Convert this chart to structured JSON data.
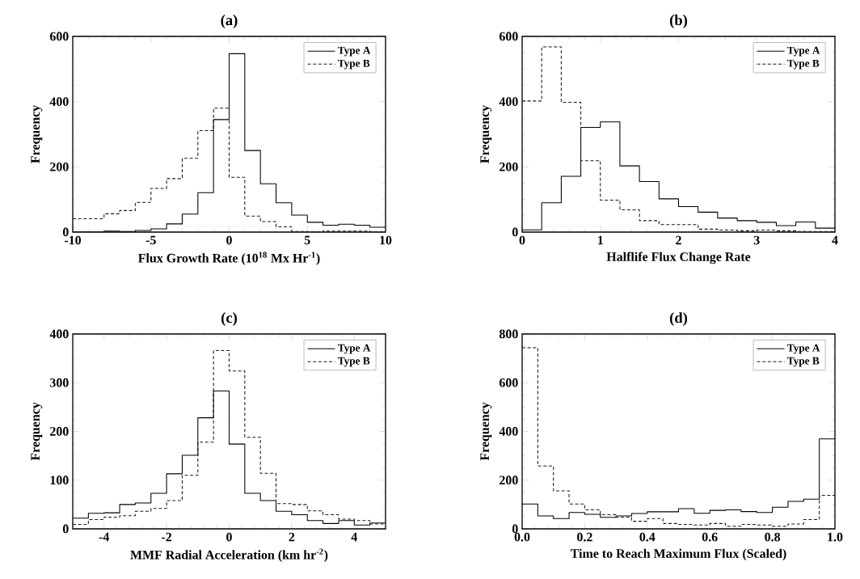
{
  "chart_data": [
    {
      "type": "histogram",
      "title": "(a)",
      "xlabel": "Flux Growth Rate (10$^{18}$ Mx Hr$^{-1}$)",
      "ylabel": "Frequency",
      "bins": [
        -10,
        -9,
        -8,
        -7,
        -6,
        -5,
        -4,
        -3,
        -2,
        -1,
        0,
        1,
        2,
        3,
        4,
        5,
        6,
        7,
        8,
        9,
        10
      ],
      "series": [
        {
          "name": "Type A",
          "color": "#000000",
          "line_style": "solid",
          "values": [
            0,
            0,
            3,
            2,
            5,
            10,
            25,
            55,
            121,
            345,
            547,
            250,
            148,
            90,
            52,
            30,
            21,
            24,
            21,
            15
          ]
        },
        {
          "name": "Type B",
          "color": "#1a1a1a",
          "line_style": "dashed",
          "values": [
            41,
            41,
            56,
            66,
            91,
            134,
            164,
            226,
            311,
            380,
            168,
            49,
            32,
            16,
            2,
            1,
            3,
            3,
            3,
            1
          ]
        }
      ],
      "xlim": [
        -10,
        10
      ],
      "ylim": [
        0,
        600
      ],
      "xticks": [
        -10,
        -5,
        0,
        5,
        10
      ],
      "yticks": [
        0,
        200,
        400,
        600
      ],
      "legend": "top right"
    },
    {
      "type": "histogram",
      "title": "(b)",
      "xlabel": "Halflife Flux Change Rate",
      "ylabel": "Frequency",
      "bins": [
        0,
        0.25,
        0.5,
        0.75,
        1,
        1.25,
        1.5,
        1.75,
        2,
        2.25,
        2.5,
        2.75,
        3,
        3.25,
        3.5,
        3.75,
        4
      ],
      "series": [
        {
          "name": "Type A",
          "color": "#000000",
          "line_style": "solid",
          "values": [
            7,
            90,
            171,
            321,
            338,
            203,
            155,
            102,
            78,
            61,
            43,
            35,
            30,
            20,
            31,
            12
          ]
        },
        {
          "name": "Type B",
          "color": "#1a1a1a",
          "line_style": "dashed",
          "values": [
            402,
            568,
            398,
            219,
            98,
            68,
            35,
            23,
            23,
            9,
            6,
            4,
            6,
            4,
            2,
            2
          ]
        }
      ],
      "xlim": [
        0,
        4
      ],
      "ylim": [
        0,
        600
      ],
      "xticks": [
        0,
        1,
        2,
        3,
        4
      ],
      "yticks": [
        0,
        200,
        400,
        600
      ],
      "legend": "top right"
    },
    {
      "type": "histogram",
      "title": "(c)",
      "xlabel": "MMF Radial Acceleration (km hr$^{-2}$)",
      "ylabel": "Frequency",
      "bins": [
        -5,
        -4.5,
        -4,
        -3.5,
        -3,
        -2.5,
        -2,
        -1.5,
        -1,
        -0.5,
        0,
        0.5,
        1,
        1.5,
        2,
        2.5,
        3,
        3.5,
        4,
        4.5,
        5
      ],
      "series": [
        {
          "name": "Type A",
          "color": "#000000",
          "line_style": "solid",
          "values": [
            22,
            32,
            33,
            50,
            53,
            73,
            113,
            151,
            228,
            283,
            174,
            73,
            58,
            36,
            29,
            17,
            11,
            17,
            8,
            12
          ]
        },
        {
          "name": "Type B",
          "color": "#1a1a1a",
          "line_style": "dashed",
          "values": [
            9,
            19,
            24,
            27,
            36,
            42,
            58,
            110,
            178,
            366,
            324,
            188,
            114,
            52,
            50,
            37,
            29,
            20,
            17,
            10
          ]
        }
      ],
      "xlim": [
        -5,
        5
      ],
      "ylim": [
        0,
        400
      ],
      "xticks": [
        -4,
        -2,
        0,
        2,
        4
      ],
      "yticks": [
        0,
        100,
        200,
        300,
        400
      ],
      "legend": "top right"
    },
    {
      "type": "histogram",
      "title": "(d)",
      "xlabel": "Time to Reach Maximum Flux (Scaled)",
      "ylabel": "Frequency",
      "bins": [
        0,
        0.05,
        0.1,
        0.15,
        0.2,
        0.25,
        0.3,
        0.35,
        0.4,
        0.45,
        0.5,
        0.55,
        0.6,
        0.65,
        0.7,
        0.75,
        0.8,
        0.85,
        0.9,
        0.95,
        1
      ],
      "series": [
        {
          "name": "Type A",
          "color": "#000000",
          "line_style": "solid",
          "values": [
            102,
            53,
            42,
            67,
            60,
            47,
            53,
            63,
            70,
            70,
            83,
            64,
            76,
            78,
            71,
            67,
            89,
            113,
            122,
            369
          ]
        },
        {
          "name": "Type B",
          "color": "#1a1a1a",
          "line_style": "dashed",
          "values": [
            744,
            258,
            156,
            102,
            78,
            58,
            47,
            31,
            42,
            22,
            18,
            16,
            22,
            11,
            18,
            16,
            11,
            20,
            38,
            138
          ]
        }
      ],
      "xlim": [
        0,
        1
      ],
      "ylim": [
        0,
        800
      ],
      "xticks": [
        {
          "value": 0,
          "label": "0.0"
        },
        {
          "value": 0.2,
          "label": "0.2"
        },
        {
          "value": 0.4,
          "label": "0.4"
        },
        {
          "value": 0.6,
          "label": "0.6"
        },
        {
          "value": 0.8,
          "label": "0.8"
        },
        {
          "value": 1,
          "label": "1.0"
        }
      ],
      "yticks": [
        0,
        200,
        400,
        600,
        800
      ],
      "legend": "top right"
    }
  ]
}
